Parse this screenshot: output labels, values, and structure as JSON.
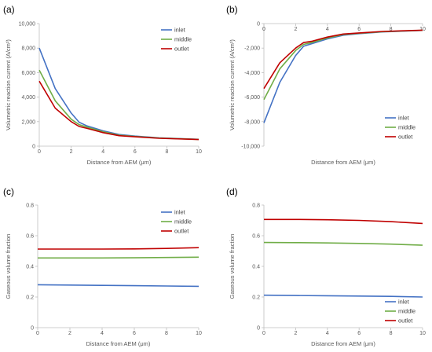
{
  "figure": {
    "panel_labels": [
      "(a)",
      "(b)",
      "(c)",
      "(d)"
    ]
  },
  "colors": {
    "inlet": "#4472c4",
    "middle": "#70ad47",
    "outlet": "#c00000",
    "axis": "#bfbfbf",
    "text": "#595959"
  },
  "chart_data": [
    {
      "panel": "(a)",
      "type": "line",
      "xlabel": "Distance from AEM (μm)",
      "ylabel": "Volumetric reaction current (A/cm³)",
      "xlim": [
        0,
        10
      ],
      "ylim": [
        0,
        10000
      ],
      "xticks": [
        0,
        2,
        4,
        6,
        8,
        10
      ],
      "yticks": [
        0,
        2000,
        4000,
        6000,
        8000,
        10000
      ],
      "ytick_labels": [
        "0",
        "2,000",
        "4,000",
        "6,000",
        "8,000",
        "10,000"
      ],
      "grid": false,
      "legend": "top-right",
      "x": [
        0,
        1,
        2,
        2.5,
        3,
        4,
        5,
        6,
        7.5,
        10
      ],
      "series": [
        {
          "name": "inlet",
          "values": [
            8000,
            4700,
            2700,
            1950,
            1650,
            1250,
            950,
            820,
            680,
            560
          ]
        },
        {
          "name": "middle",
          "values": [
            6200,
            3700,
            2200,
            1750,
            1550,
            1180,
            900,
            790,
            660,
            550
          ]
        },
        {
          "name": "outlet",
          "values": [
            5300,
            3100,
            2000,
            1600,
            1450,
            1100,
            850,
            760,
            640,
            540
          ]
        }
      ]
    },
    {
      "panel": "(b)",
      "type": "line",
      "xlabel": "Distance from AEM (μm)",
      "ylabel": "Volumetric reaction current (A/cm³)",
      "xlim": [
        0,
        10
      ],
      "ylim": [
        -10000,
        0
      ],
      "xticks": [
        0,
        2,
        4,
        6,
        8,
        10
      ],
      "yticks": [
        -10000,
        -8000,
        -6000,
        -4000,
        -2000,
        0
      ],
      "ytick_labels": [
        "-10,000",
        "-8,000",
        "-6,000",
        "-4,000",
        "-2,000",
        "0"
      ],
      "grid": false,
      "legend": "bottom-right",
      "x": [
        0,
        1,
        2,
        2.5,
        3,
        4,
        5,
        6,
        7.5,
        10
      ],
      "series": [
        {
          "name": "inlet",
          "values": [
            -8100,
            -4800,
            -2600,
            -1850,
            -1650,
            -1250,
            -950,
            -820,
            -680,
            -560
          ]
        },
        {
          "name": "middle",
          "values": [
            -6200,
            -3700,
            -2200,
            -1700,
            -1550,
            -1180,
            -900,
            -790,
            -660,
            -550
          ]
        },
        {
          "name": "outlet",
          "values": [
            -5300,
            -3200,
            -2000,
            -1550,
            -1450,
            -1100,
            -850,
            -760,
            -640,
            -540
          ]
        }
      ]
    },
    {
      "panel": "(c)",
      "type": "line",
      "xlabel": "Distance from AEM (μm)",
      "ylabel": "Gaseous volume fraction",
      "xlim": [
        0,
        10
      ],
      "ylim": [
        0,
        0.8
      ],
      "xticks": [
        0,
        2,
        4,
        6,
        8,
        10
      ],
      "yticks": [
        0,
        0.2,
        0.4,
        0.6,
        0.8
      ],
      "ytick_labels": [
        "0",
        "0.2",
        "0.4",
        "0.6",
        "0.8"
      ],
      "grid": false,
      "legend": "top-right",
      "x": [
        0,
        2,
        4,
        6,
        8,
        10
      ],
      "series": [
        {
          "name": "inlet",
          "values": [
            0.28,
            0.278,
            0.276,
            0.274,
            0.272,
            0.27
          ]
        },
        {
          "name": "middle",
          "values": [
            0.455,
            0.455,
            0.455,
            0.456,
            0.458,
            0.46
          ]
        },
        {
          "name": "outlet",
          "values": [
            0.513,
            0.513,
            0.513,
            0.514,
            0.517,
            0.522
          ]
        }
      ]
    },
    {
      "panel": "(d)",
      "type": "line",
      "xlabel": "Distance from AEM (μm)",
      "ylabel": "Gaseous volume fraction",
      "xlim": [
        0,
        10
      ],
      "ylim": [
        0,
        0.8
      ],
      "xticks": [
        0,
        2,
        4,
        6,
        8,
        10
      ],
      "yticks": [
        0,
        0.2,
        0.4,
        0.6,
        0.8
      ],
      "ytick_labels": [
        "0",
        "0.2",
        "0.4",
        "0.6",
        "0.8"
      ],
      "grid": false,
      "legend": "bottom-right",
      "x": [
        0,
        2,
        4,
        6,
        8,
        10
      ],
      "series": [
        {
          "name": "inlet",
          "values": [
            0.212,
            0.21,
            0.208,
            0.206,
            0.204,
            0.2
          ]
        },
        {
          "name": "middle",
          "values": [
            0.556,
            0.555,
            0.553,
            0.55,
            0.545,
            0.538
          ]
        },
        {
          "name": "outlet",
          "values": [
            0.706,
            0.706,
            0.704,
            0.7,
            0.692,
            0.68
          ]
        }
      ]
    }
  ]
}
